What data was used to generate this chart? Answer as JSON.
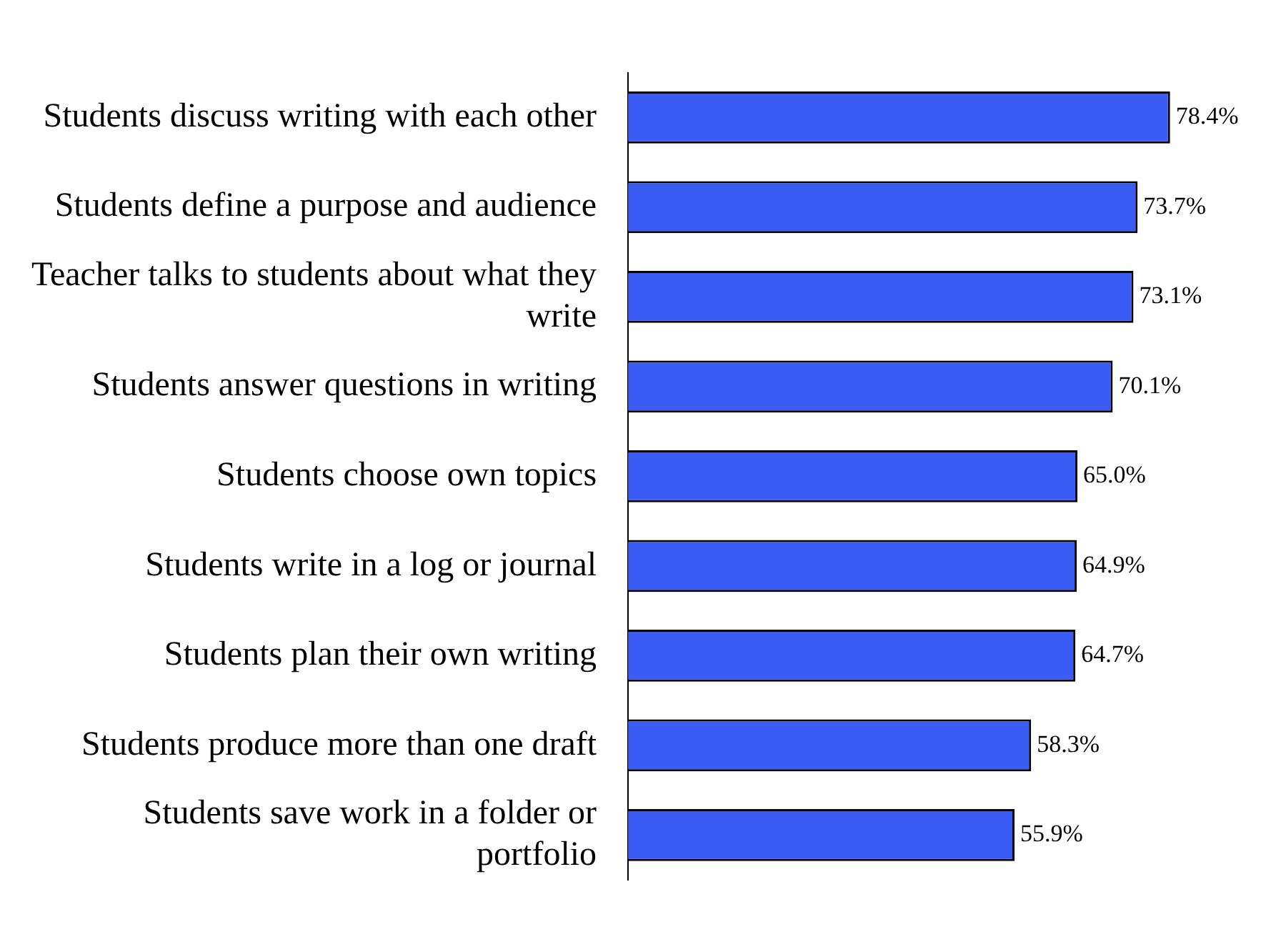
{
  "chart_data": {
    "type": "bar",
    "orientation": "horizontal",
    "categories": [
      "Students discuss writing with each other",
      "Students define a purpose and audience",
      "Teacher talks to students about what they write",
      "Students answer questions in writing",
      "Students choose own topics",
      "Students write in a log or journal",
      "Students plan their own writing",
      "Students produce more than one draft",
      "Students save work in a folder or portfolio"
    ],
    "values": [
      78.4,
      73.7,
      73.1,
      70.1,
      65.0,
      64.9,
      64.7,
      58.3,
      55.9
    ],
    "value_labels": [
      "78.4%",
      "73.7%",
      "73.1%",
      "70.1%",
      "65.0%",
      "64.9%",
      "64.7%",
      "58.3%",
      "55.9%"
    ],
    "color": "#3b5bf5",
    "tick_labels": "y"
  }
}
